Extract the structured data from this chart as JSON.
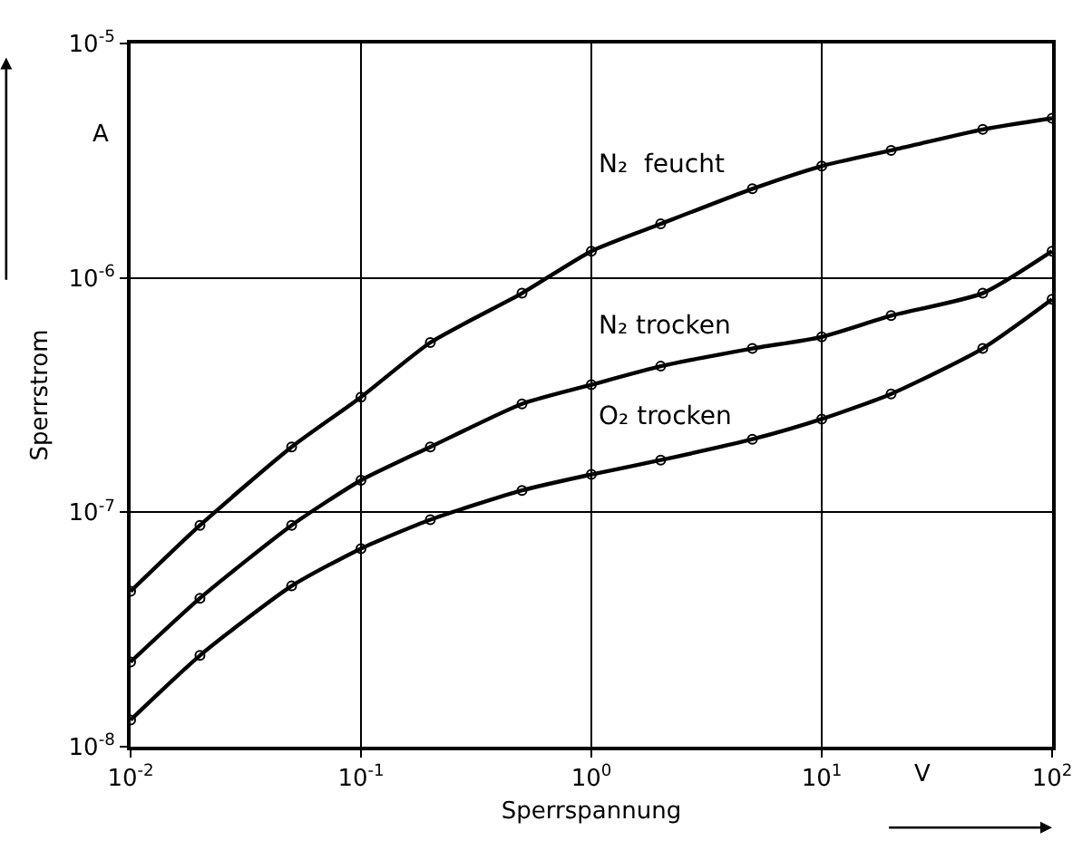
{
  "chart_data": {
    "type": "line",
    "xlabel": "Sperrspannung",
    "ylabel": "Sperrstrom",
    "log": "xy",
    "grid": true,
    "legend": false,
    "marker": "circle",
    "line_style": "solid",
    "x": [
      0.01,
      0.02,
      0.05,
      0.1,
      0.2,
      0.5,
      1,
      2,
      5,
      10,
      20,
      50,
      100
    ],
    "xlim": [
      0.01,
      100
    ],
    "ylim": [
      1e-08,
      1e-05
    ],
    "xticks": [
      {
        "value": 0.01,
        "label": "10$^{-2}$"
      },
      {
        "value": 0.1,
        "label": "10$^{-1}$"
      },
      {
        "value": 1,
        "label": "10$^{0}$"
      },
      {
        "value": 10,
        "label": "10$^{1}$"
      },
      {
        "value": 100,
        "label": "10$^{2}$"
      }
    ],
    "yticks": [
      {
        "value": 1e-08,
        "label": "10$^{-8}$"
      },
      {
        "value": 1e-07,
        "label": "10$^{-7}$"
      },
      {
        "value": 1e-06,
        "label": "10$^{-6}$"
      },
      {
        "value": 1e-05,
        "label": "10$^{-5}$"
      }
    ],
    "annotations": [
      "A",
      "V"
    ],
    "series": [
      {
        "name": "N₂  feucht",
        "color": "#000000",
        "values": [
          4.6e-08,
          8.8e-08,
          1.9e-07,
          3.1e-07,
          5.3e-07,
          8.6e-07,
          1.3e-06,
          1.7e-06,
          2.4e-06,
          3e-06,
          3.5e-06,
          4.3e-06,
          4.8e-06
        ]
      },
      {
        "name": "N₂ trocken",
        "color": "#000000",
        "values": [
          2.3e-08,
          4.3e-08,
          8.8e-08,
          1.37e-07,
          1.9e-07,
          2.9e-07,
          3.5e-07,
          4.2e-07,
          5e-07,
          5.6e-07,
          6.9e-07,
          8.6e-07,
          1.3e-06
        ]
      },
      {
        "name": "O₂ trocken",
        "color": "#000000",
        "values": [
          1.3e-08,
          2.45e-08,
          4.85e-08,
          7e-08,
          9.3e-08,
          1.24e-07,
          1.45e-07,
          1.67e-07,
          2.05e-07,
          2.5e-07,
          3.2e-07,
          5e-07,
          8.1e-07
        ]
      }
    ]
  }
}
